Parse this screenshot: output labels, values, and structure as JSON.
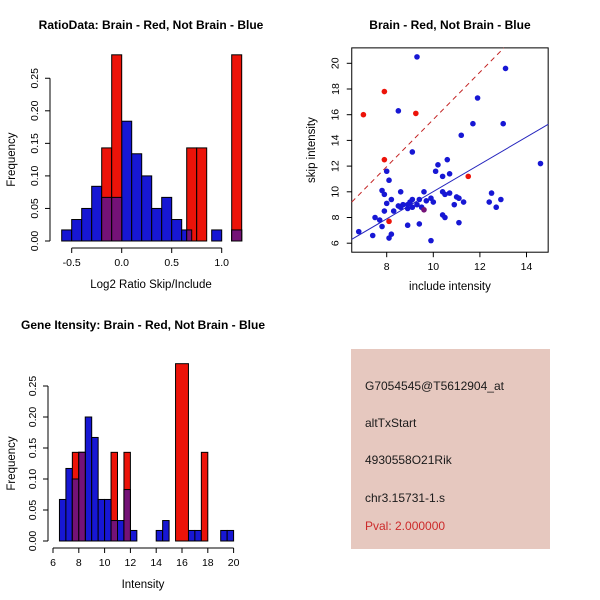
{
  "colors": {
    "blue": "#1717d4",
    "red": "#ec1309",
    "purple": "#741277",
    "line_red": "#c32222",
    "line_blue": "#2424bd",
    "axis": "#000000",
    "info_bg": "#e6c8bf",
    "info_text": "#1a1a1a",
    "pval_red": "#cc2a2a"
  },
  "chart_data": [
    {
      "id": "ratio_hist",
      "type": "bar",
      "title": "RatioData: Brain - Red, Not Brain - Blue",
      "xlabel": "Log2 Ratio Skip/Include",
      "ylabel": "Frequency",
      "xlim": [
        -0.72,
        1.28
      ],
      "ylim": [
        0,
        0.2857
      ],
      "x_ticks": [
        {
          "v": -0.5,
          "label": "-0.5"
        },
        {
          "v": 0.0,
          "label": "0.0"
        },
        {
          "v": 0.5,
          "label": "0.5"
        },
        {
          "v": 1.0,
          "label": "1.0"
        }
      ],
      "y_ticks": [
        {
          "v": 0.0,
          "label": "0.00"
        },
        {
          "v": 0.05,
          "label": "0.05"
        },
        {
          "v": 0.1,
          "label": "0.10"
        },
        {
          "v": 0.15,
          "label": "0.15"
        },
        {
          "v": 0.2,
          "label": "0.20"
        },
        {
          "v": 0.25,
          "label": "0.25"
        }
      ],
      "grid": false,
      "legend": "none",
      "series": [
        {
          "name": "not-brain-blue",
          "color_key": "blue",
          "bars": [
            [
              -0.6,
              0.1,
              0.017
            ],
            [
              -0.5,
              0.1,
              0.033
            ],
            [
              -0.4,
              0.1,
              0.05
            ],
            [
              -0.3,
              0.1,
              0.084
            ],
            [
              -0.2,
              0.1,
              0.067
            ],
            [
              -0.1,
              0.1,
              0.067
            ],
            [
              0.0,
              0.1,
              0.184
            ],
            [
              0.1,
              0.1,
              0.134
            ],
            [
              0.2,
              0.1,
              0.1
            ],
            [
              0.3,
              0.1,
              0.05
            ],
            [
              0.4,
              0.1,
              0.067
            ],
            [
              0.5,
              0.1,
              0.033
            ],
            [
              0.6,
              0.1,
              0.017
            ],
            [
              0.9,
              0.1,
              0.017
            ],
            [
              1.1,
              0.1,
              0.017
            ]
          ]
        },
        {
          "name": "brain-red",
          "color_key": "red",
          "bars": [
            [
              -0.2,
              0.1,
              0.143
            ],
            [
              -0.1,
              0.1,
              0.286
            ],
            [
              0.65,
              0.1,
              0.143
            ],
            [
              0.75,
              0.1,
              0.143
            ],
            [
              1.1,
              0.1,
              0.286
            ]
          ]
        },
        {
          "name": "overlap-purple",
          "color_key": "purple",
          "bars": [
            [
              -0.2,
              0.1,
              0.067
            ],
            [
              -0.1,
              0.1,
              0.067
            ],
            [
              0.65,
              0.05,
              0.017
            ],
            [
              1.1,
              0.1,
              0.017
            ]
          ]
        }
      ]
    },
    {
      "id": "scatter",
      "type": "scatter",
      "title": "Brain - Red, Not Brain - Blue",
      "xlabel": "include intensity",
      "ylabel": "skip intensity",
      "xlim": [
        6.5,
        14.93
      ],
      "ylim": [
        5.3,
        21.2
      ],
      "x_ticks": [
        {
          "v": 8,
          "label": "8"
        },
        {
          "v": 10,
          "label": "10"
        },
        {
          "v": 12,
          "label": "12"
        },
        {
          "v": 14,
          "label": "14"
        }
      ],
      "y_ticks": [
        {
          "v": 6,
          "label": "6"
        },
        {
          "v": 8,
          "label": "8"
        },
        {
          "v": 10,
          "label": "10"
        },
        {
          "v": 12,
          "label": "12"
        },
        {
          "v": 14,
          "label": "14"
        },
        {
          "v": 16,
          "label": "16"
        },
        {
          "v": 18,
          "label": "18"
        },
        {
          "v": 20,
          "label": "20"
        }
      ],
      "grid": false,
      "legend": "none",
      "points_blue": [
        [
          9.3,
          20.5
        ],
        [
          13.1,
          19.6
        ],
        [
          11.9,
          17.3
        ],
        [
          8.5,
          16.3
        ],
        [
          11.7,
          15.3
        ],
        [
          13.0,
          15.3
        ],
        [
          11.2,
          14.4
        ],
        [
          9.1,
          13.1
        ],
        [
          10.6,
          12.5
        ],
        [
          14.6,
          12.2
        ],
        [
          10.2,
          12.1
        ],
        [
          10.1,
          11.6
        ],
        [
          10.4,
          11.2
        ],
        [
          10.7,
          11.4
        ],
        [
          8.0,
          11.6
        ],
        [
          8.1,
          10.9
        ],
        [
          6.8,
          6.9
        ],
        [
          7.4,
          6.6
        ],
        [
          7.8,
          7.3
        ],
        [
          7.5,
          8.0
        ],
        [
          7.7,
          7.8
        ],
        [
          7.9,
          8.5
        ],
        [
          8.0,
          9.1
        ],
        [
          7.9,
          9.8
        ],
        [
          7.8,
          10.1
        ],
        [
          8.1,
          6.4
        ],
        [
          8.2,
          6.7
        ],
        [
          8.2,
          9.4
        ],
        [
          8.3,
          8.5
        ],
        [
          8.5,
          8.9
        ],
        [
          8.6,
          10.0
        ],
        [
          8.6,
          8.8
        ],
        [
          8.7,
          9.0
        ],
        [
          8.9,
          8.7
        ],
        [
          8.9,
          9.0
        ],
        [
          9.0,
          9.2
        ],
        [
          9.1,
          8.8
        ],
        [
          9.1,
          9.4
        ],
        [
          9.3,
          9.0
        ],
        [
          9.4,
          9.4
        ],
        [
          9.5,
          8.8
        ],
        [
          9.6,
          10.0
        ],
        [
          9.7,
          9.3
        ],
        [
          9.9,
          9.5
        ],
        [
          10.0,
          9.2
        ],
        [
          10.4,
          10.0
        ],
        [
          10.5,
          9.8
        ],
        [
          10.7,
          9.9
        ],
        [
          10.9,
          9.0
        ],
        [
          11.0,
          9.6
        ],
        [
          10.4,
          8.2
        ],
        [
          10.5,
          8.0
        ],
        [
          9.9,
          6.2
        ],
        [
          9.4,
          7.5
        ],
        [
          8.9,
          7.4
        ],
        [
          11.1,
          7.6
        ],
        [
          12.5,
          9.9
        ],
        [
          12.4,
          9.2
        ],
        [
          12.7,
          8.8
        ],
        [
          12.9,
          9.4
        ],
        [
          11.3,
          9.2
        ],
        [
          11.1,
          9.5
        ]
      ],
      "points_red": [
        [
          7.0,
          16.0
        ],
        [
          7.9,
          17.8
        ],
        [
          9.25,
          16.1
        ],
        [
          7.9,
          12.5
        ],
        [
          11.5,
          11.2
        ],
        [
          8.1,
          7.7
        ]
      ],
      "points_purple": [
        [
          9.6,
          8.6
        ]
      ],
      "lines": [
        {
          "name": "brain-fit-line",
          "x1": 6.5,
          "y1": 9.2,
          "x2": 13.03,
          "y2": 21.2,
          "color_key": "line_red",
          "dashed": true
        },
        {
          "name": "not-brain-fit-line",
          "x1": 6.5,
          "y1": 6.3,
          "x2": 14.93,
          "y2": 15.25,
          "color_key": "line_blue",
          "dashed": false
        }
      ]
    },
    {
      "id": "gene_hist",
      "type": "bar",
      "title": "Gene Itensity: Brain - Red, Not Brain - Blue",
      "xlabel": "Intensity",
      "ylabel": "Frequency",
      "xlim": [
        5.8,
        21.0
      ],
      "ylim": [
        0,
        0.2857
      ],
      "x_ticks": [
        {
          "v": 6,
          "label": "6"
        },
        {
          "v": 8,
          "label": "8"
        },
        {
          "v": 10,
          "label": "10"
        },
        {
          "v": 12,
          "label": "12"
        },
        {
          "v": 14,
          "label": "14"
        },
        {
          "v": 16,
          "label": "16"
        },
        {
          "v": 18,
          "label": "18"
        },
        {
          "v": 20,
          "label": "20"
        }
      ],
      "y_ticks": [
        {
          "v": 0.0,
          "label": "0.00"
        },
        {
          "v": 0.05,
          "label": "0.05"
        },
        {
          "v": 0.1,
          "label": "0.10"
        },
        {
          "v": 0.15,
          "label": "0.15"
        },
        {
          "v": 0.2,
          "label": "0.20"
        },
        {
          "v": 0.25,
          "label": "0.25"
        }
      ],
      "grid": false,
      "legend": "none",
      "series": [
        {
          "name": "not-brain-blue",
          "color_key": "blue",
          "bars": [
            [
              6.5,
              0.5,
              0.067
            ],
            [
              7.0,
              0.5,
              0.117
            ],
            [
              7.5,
              0.5,
              0.1
            ],
            [
              8.0,
              0.5,
              0.143
            ],
            [
              8.5,
              0.5,
              0.2
            ],
            [
              9.0,
              0.5,
              0.167
            ],
            [
              9.5,
              0.5,
              0.067
            ],
            [
              10.0,
              0.5,
              0.067
            ],
            [
              10.5,
              0.5,
              0.033
            ],
            [
              11.0,
              0.5,
              0.033
            ],
            [
              11.5,
              0.5,
              0.083
            ],
            [
              12.0,
              0.5,
              0.017
            ],
            [
              14.0,
              0.5,
              0.017
            ],
            [
              14.5,
              0.5,
              0.033
            ],
            [
              16.5,
              0.5,
              0.017
            ],
            [
              17.0,
              0.5,
              0.017
            ],
            [
              19.0,
              0.5,
              0.017
            ],
            [
              19.5,
              0.5,
              0.017
            ]
          ]
        },
        {
          "name": "brain-red",
          "color_key": "red",
          "bars": [
            [
              7.5,
              0.5,
              0.143
            ],
            [
              8.0,
              0.5,
              0.143
            ],
            [
              10.5,
              0.5,
              0.143
            ],
            [
              11.5,
              0.5,
              0.143
            ],
            [
              15.5,
              1.0,
              0.286
            ],
            [
              17.5,
              0.5,
              0.143
            ]
          ]
        },
        {
          "name": "overlap-purple",
          "color_key": "purple",
          "bars": [
            [
              7.5,
              0.5,
              0.1
            ],
            [
              8.0,
              0.5,
              0.143
            ],
            [
              10.5,
              0.5,
              0.033
            ],
            [
              11.5,
              0.5,
              0.083
            ]
          ]
        }
      ]
    }
  ],
  "info_panel": {
    "lines": [
      {
        "name": "probe-id",
        "text": "G7054545@T5612904_at",
        "color_key": "info_text"
      },
      {
        "name": "event-type",
        "text": "altTxStart",
        "color_key": "info_text"
      },
      {
        "name": "gene-symbol",
        "text": "4930558O21Rik",
        "color_key": "info_text"
      },
      {
        "name": "locus-id",
        "text": "chr3.15731-1.s",
        "color_key": "info_text"
      },
      {
        "name": "pval",
        "text": "Pval: 2.000000",
        "color_key": "pval_red"
      }
    ]
  }
}
